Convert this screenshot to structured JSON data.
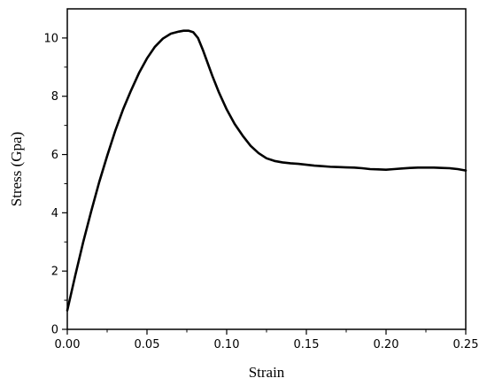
{
  "chart_data": {
    "type": "line",
    "xlabel": "Strain",
    "ylabel": "Stress (Gpa)",
    "xlim": [
      0,
      0.25
    ],
    "ylim": [
      0,
      11
    ],
    "xticks": [
      "0.00",
      "0.05",
      "0.10",
      "0.15",
      "0.20",
      "0.25"
    ],
    "yticks": [
      "0",
      "2",
      "4",
      "6",
      "8",
      "10"
    ],
    "grid": false,
    "legend": "none",
    "series": [
      {
        "color": "#000000",
        "x": [
          0.0,
          0.005,
          0.01,
          0.015,
          0.02,
          0.025,
          0.03,
          0.035,
          0.04,
          0.045,
          0.05,
          0.055,
          0.06,
          0.065,
          0.07,
          0.073,
          0.076,
          0.079,
          0.082,
          0.085,
          0.088,
          0.091,
          0.095,
          0.1,
          0.105,
          0.11,
          0.115,
          0.12,
          0.125,
          0.13,
          0.135,
          0.14,
          0.145,
          0.15,
          0.155,
          0.16,
          0.165,
          0.17,
          0.175,
          0.18,
          0.185,
          0.19,
          0.195,
          0.2,
          0.205,
          0.21,
          0.215,
          0.22,
          0.225,
          0.23,
          0.235,
          0.24,
          0.245,
          0.25
        ],
        "y": [
          0.65,
          1.85,
          3.0,
          4.05,
          5.05,
          5.95,
          6.8,
          7.55,
          8.2,
          8.8,
          9.3,
          9.7,
          9.98,
          10.15,
          10.22,
          10.25,
          10.25,
          10.2,
          10.0,
          9.6,
          9.15,
          8.7,
          8.15,
          7.55,
          7.05,
          6.65,
          6.3,
          6.05,
          5.87,
          5.78,
          5.73,
          5.7,
          5.68,
          5.65,
          5.62,
          5.6,
          5.58,
          5.57,
          5.56,
          5.55,
          5.53,
          5.5,
          5.49,
          5.48,
          5.5,
          5.52,
          5.54,
          5.55,
          5.55,
          5.55,
          5.54,
          5.53,
          5.5,
          5.45
        ]
      }
    ]
  }
}
